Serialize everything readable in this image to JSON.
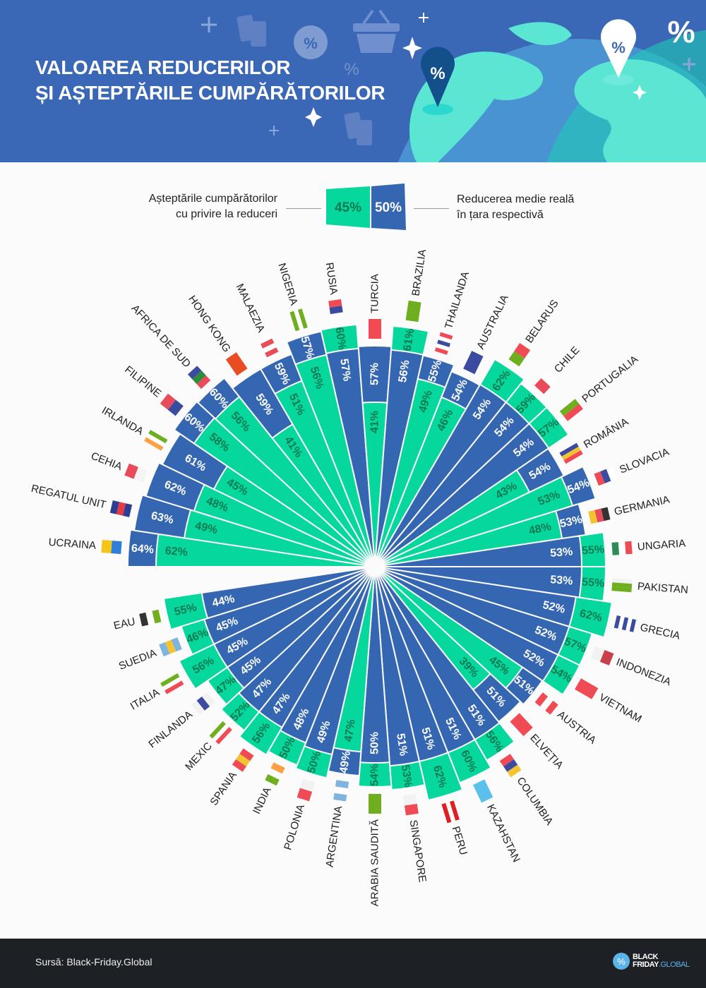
{
  "header": {
    "title_line1": "VALOAREA REDUCERILOR",
    "title_line2": "ȘI AȘTEPTĂRILE CUMPĂRĂTORILOR",
    "decor_symbol": "%"
  },
  "legend": {
    "left_line1": "Așteptările cumpărătorilor",
    "left_line2": "cu privire la reduceri",
    "right_line1": "Reducerea medie reală",
    "right_line2": "în țara respectivă",
    "green_sample": "45%",
    "blue_sample": "50%"
  },
  "colors": {
    "expectation": "#06d79c",
    "actual": "#3566b2",
    "expectation_text": "#0b7a53",
    "actual_text": "#ffffff"
  },
  "chart_data": {
    "type": "radial-bar",
    "series": [
      {
        "name": "Așteptările cumpărătorilor cu privire la reduceri",
        "key": "expected",
        "color": "#06d79c"
      },
      {
        "name": "Reducerea medie reală în țara respectivă",
        "key": "actual",
        "color": "#3566b2"
      }
    ],
    "unit": "%",
    "countries": [
      {
        "name": "UCRAINA",
        "actual": 64,
        "expected": 62,
        "flag": {
          "dir": "h",
          "colors": [
            "#2f7fd8",
            "#f5c518"
          ]
        }
      },
      {
        "name": "REGATUL UNIT",
        "actual": 63,
        "expected": 49,
        "flag": {
          "dir": "h",
          "colors": [
            "#2c3e8f",
            "#e63946",
            "#2c3e8f"
          ]
        }
      },
      {
        "name": "CEHIA",
        "actual": 62,
        "expected": 48,
        "flag": {
          "dir": "h",
          "colors": [
            "#f4f4f4",
            "#e84c5a"
          ]
        }
      },
      {
        "name": "IRLANDA",
        "actual": 61,
        "expected": 45,
        "flag": {
          "dir": "v",
          "colors": [
            "#6fae1e",
            "#ffffff",
            "#ff9f45"
          ]
        }
      },
      {
        "name": "FILIPINE",
        "actual": 60,
        "expected": 58,
        "flag": {
          "dir": "h",
          "colors": [
            "#3a4ba0",
            "#e84c5a"
          ]
        }
      },
      {
        "name": "AFRICA DE SUD",
        "actual": 60,
        "expected": 56,
        "flag": {
          "dir": "h",
          "colors": [
            "#e84c5a",
            "#2e8b3a",
            "#3a4ba0"
          ]
        }
      },
      {
        "name": "HONG KONG",
        "actual": 59,
        "expected": 41,
        "flag": {
          "dir": "h",
          "colors": [
            "#e84c20"
          ]
        }
      },
      {
        "name": "MALAEZIA",
        "actual": 59,
        "expected": 51,
        "flag": {
          "dir": "h",
          "colors": [
            "#e84c5a",
            "#ffffff",
            "#e84c5a",
            "#ffffff"
          ]
        }
      },
      {
        "name": "NIGERIA",
        "actual": 57,
        "expected": 56,
        "flag": {
          "dir": "v",
          "colors": [
            "#6fae1e",
            "#ffffff",
            "#6fae1e"
          ]
        }
      },
      {
        "name": "RUSIA",
        "actual": 57,
        "expected": 60,
        "flag": {
          "dir": "h",
          "colors": [
            "#ffffff",
            "#3a4ba0",
            "#f04b55"
          ]
        }
      },
      {
        "name": "TURCIA",
        "actual": 57,
        "expected": 41,
        "flag": {
          "dir": "h",
          "colors": [
            "#f04b55"
          ]
        }
      },
      {
        "name": "BRAZILIA",
        "actual": 56,
        "expected": 61,
        "flag": {
          "dir": "h",
          "colors": [
            "#6fae1e"
          ]
        }
      },
      {
        "name": "THAILANDA",
        "actual": 55,
        "expected": 49,
        "flag": {
          "dir": "h",
          "colors": [
            "#f04b55",
            "#ffffff",
            "#3a4ba0",
            "#ffffff",
            "#f04b55"
          ]
        }
      },
      {
        "name": "AUSTRALIA",
        "actual": 54,
        "expected": 46,
        "flag": {
          "dir": "h",
          "colors": [
            "#3a4ba0"
          ]
        }
      },
      {
        "name": "BELARUS",
        "actual": 54,
        "expected": 62,
        "flag": {
          "dir": "h",
          "colors": [
            "#f04b55",
            "#6fae1e"
          ]
        }
      },
      {
        "name": "CHILE",
        "actual": 54,
        "expected": 59,
        "flag": {
          "dir": "h",
          "colors": [
            "#ffffff",
            "#e84c5a"
          ]
        }
      },
      {
        "name": "PORTUGALIA",
        "actual": 54,
        "expected": 57,
        "flag": {
          "dir": "v",
          "colors": [
            "#6fae1e",
            "#f04b55"
          ]
        }
      },
      {
        "name": "ROMÂNIA",
        "actual": 54,
        "expected": 43,
        "flag": {
          "dir": "v",
          "colors": [
            "#3a4ba0",
            "#f4c430",
            "#f04b55"
          ]
        }
      },
      {
        "name": "SLOVACIA",
        "actual": 54,
        "expected": 53,
        "flag": {
          "dir": "h",
          "colors": [
            "#ffffff",
            "#3a4ba0",
            "#f04b55"
          ]
        }
      },
      {
        "name": "GERMANIA",
        "actual": 53,
        "expected": 48,
        "flag": {
          "dir": "h",
          "colors": [
            "#333333",
            "#e84c5a",
            "#f4c430"
          ]
        }
      },
      {
        "name": "UNGARIA",
        "actual": 53,
        "expected": 55,
        "flag": {
          "dir": "h",
          "colors": [
            "#f04b55",
            "#ffffff",
            "#2e8b57"
          ]
        }
      },
      {
        "name": "PAKISTAN",
        "actual": 53,
        "expected": 55,
        "flag": {
          "dir": "v",
          "colors": [
            "#f2f2f2",
            "#6fae1e",
            "#6fae1e"
          ]
        }
      },
      {
        "name": "GRECIA",
        "actual": 52,
        "expected": 62,
        "flag": {
          "dir": "h",
          "colors": [
            "#3a4ba0",
            "#ffffff",
            "#3a4ba0",
            "#ffffff",
            "#3a4ba0"
          ]
        }
      },
      {
        "name": "INDONEZIA",
        "actual": 52,
        "expected": 57,
        "flag": {
          "dir": "h",
          "colors": [
            "#c8404a",
            "#f2f2f2"
          ]
        }
      },
      {
        "name": "VIETNAM",
        "actual": 52,
        "expected": 54,
        "flag": {
          "dir": "h",
          "colors": [
            "#f04b55"
          ]
        }
      },
      {
        "name": "AUSTRIA",
        "actual": 51,
        "expected": 45,
        "flag": {
          "dir": "h",
          "colors": [
            "#f04b55",
            "#ffffff",
            "#f04b55"
          ]
        }
      },
      {
        "name": "ELVEȚIA",
        "actual": 51,
        "expected": 39,
        "flag": {
          "dir": "h",
          "colors": [
            "#f04b55"
          ]
        }
      },
      {
        "name": "COLUMBIA",
        "actual": 51,
        "expected": 56,
        "flag": {
          "dir": "h",
          "colors": [
            "#f4c430",
            "#3a4ba0",
            "#f04b55"
          ]
        }
      },
      {
        "name": "KAZAHSTAN",
        "actual": 51,
        "expected": 60,
        "flag": {
          "dir": "h",
          "colors": [
            "#5bc0eb"
          ]
        }
      },
      {
        "name": "PERU",
        "actual": 51,
        "expected": 62,
        "flag": {
          "dir": "v",
          "colors": [
            "#e02020",
            "#ffffff",
            "#e02020"
          ]
        }
      },
      {
        "name": "SINGAPORE",
        "actual": 51,
        "expected": 53,
        "flag": {
          "dir": "h",
          "colors": [
            "#f04b55",
            "#f2f2f2"
          ]
        }
      },
      {
        "name": "ARABIA SAUDITĂ",
        "actual": 50,
        "expected": 54,
        "flag": {
          "dir": "h",
          "colors": [
            "#6fae1e"
          ]
        }
      },
      {
        "name": "ARGENTINA",
        "actual": 49,
        "expected": 47,
        "flag": {
          "dir": "h",
          "colors": [
            "#7fb3e0",
            "#ffffff",
            "#7fb3e0"
          ]
        }
      },
      {
        "name": "POLONIA",
        "actual": 49,
        "expected": 50,
        "flag": {
          "dir": "h",
          "colors": [
            "#f2f2f2",
            "#f04b55"
          ]
        }
      },
      {
        "name": "INDIA",
        "actual": 48,
        "expected": 50,
        "flag": {
          "dir": "h",
          "colors": [
            "#ff9f45",
            "#ffffff",
            "#6fae1e"
          ]
        }
      },
      {
        "name": "SPANIA",
        "actual": 47,
        "expected": 56,
        "flag": {
          "dir": "h",
          "colors": [
            "#f04b55",
            "#f4c430",
            "#f04b55"
          ]
        }
      },
      {
        "name": "MEXIC",
        "actual": 47,
        "expected": 52,
        "flag": {
          "dir": "v",
          "colors": [
            "#6fae1e",
            "#ffffff",
            "#f04b55"
          ]
        }
      },
      {
        "name": "FINLANDA",
        "actual": 45,
        "expected": 47,
        "flag": {
          "dir": "h",
          "colors": [
            "#f2f2f2",
            "#3a4ba0",
            "#f2f2f2"
          ]
        }
      },
      {
        "name": "ITALIA",
        "actual": 45,
        "expected": 56,
        "flag": {
          "dir": "v",
          "colors": [
            "#6fae1e",
            "#ffffff",
            "#f04b55"
          ]
        }
      },
      {
        "name": "SUEDIA",
        "actual": 45,
        "expected": 46,
        "flag": {
          "dir": "h",
          "colors": [
            "#7fb3e0",
            "#f4c430",
            "#7fb3e0"
          ]
        }
      },
      {
        "name": "EAU",
        "actual": 44,
        "expected": 55,
        "flag": {
          "dir": "h",
          "colors": [
            "#6fae1e",
            "#ffffff",
            "#333333"
          ]
        }
      }
    ]
  },
  "footer": {
    "source": "Sursă: Black-Friday.Global",
    "logo_line1": "BLACK",
    "logo_line2a": "FRIDAY",
    "logo_line2b": ".GLOBAL",
    "logo_symbol": "%"
  }
}
